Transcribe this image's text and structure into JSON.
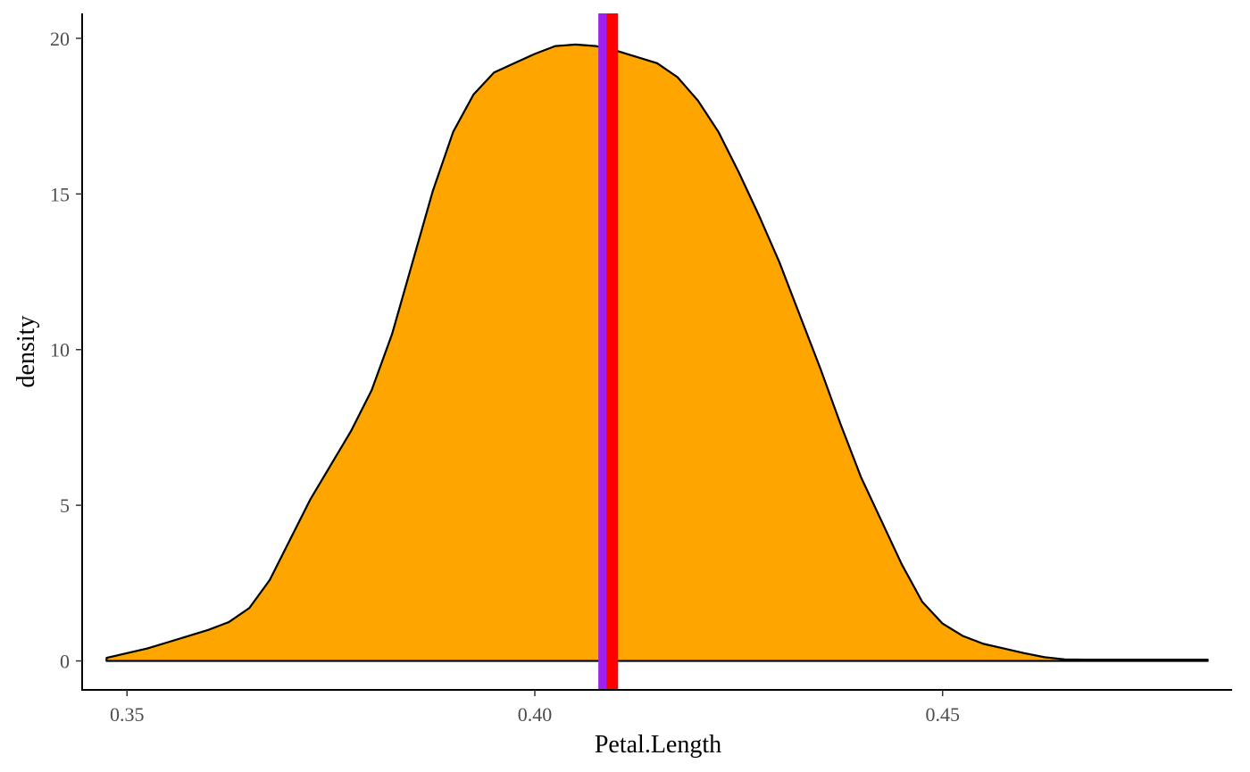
{
  "chart_data": {
    "type": "area",
    "title": "",
    "xlabel": "Petal.Length",
    "ylabel": "density",
    "xlim": [
      0.3445,
      0.4855
    ],
    "ylim": [
      -0.93,
      20.8
    ],
    "x_ticks": [
      0.35,
      0.4,
      0.45
    ],
    "x_tick_labels": [
      "0.35",
      "0.40",
      "0.45"
    ],
    "y_ticks": [
      0,
      5,
      10,
      15,
      20
    ],
    "y_tick_labels": [
      "0",
      "5",
      "10",
      "15",
      "20"
    ],
    "grid": false,
    "legend": "none",
    "colors": {
      "fill": "#FFA500",
      "outline": "#000000",
      "vline_1": "#A020F0",
      "vline_2": "#FF0000",
      "axis": "#000000"
    },
    "density": {
      "x": [
        0.3475,
        0.35,
        0.3525,
        0.355,
        0.3575,
        0.36,
        0.3625,
        0.365,
        0.3675,
        0.37,
        0.3725,
        0.375,
        0.3775,
        0.38,
        0.3825,
        0.385,
        0.3875,
        0.39,
        0.3925,
        0.395,
        0.3975,
        0.4,
        0.4025,
        0.405,
        0.4075,
        0.41,
        0.4125,
        0.415,
        0.4175,
        0.42,
        0.4225,
        0.425,
        0.4275,
        0.43,
        0.4325,
        0.435,
        0.4375,
        0.44,
        0.4425,
        0.445,
        0.4475,
        0.45,
        0.4525,
        0.455,
        0.4575,
        0.46,
        0.4625,
        0.465,
        0.4675,
        0.47,
        0.4725,
        0.475,
        0.4775,
        0.48,
        0.4825
      ],
      "y": [
        0.1,
        0.25,
        0.4,
        0.6,
        0.8,
        1.0,
        1.25,
        1.7,
        2.6,
        3.9,
        5.2,
        6.3,
        7.4,
        8.7,
        10.5,
        12.8,
        15.1,
        17.0,
        18.2,
        18.9,
        19.2,
        19.5,
        19.75,
        19.8,
        19.75,
        19.6,
        19.4,
        19.2,
        18.75,
        18.0,
        17.0,
        15.7,
        14.3,
        12.8,
        11.1,
        9.4,
        7.6,
        5.9,
        4.5,
        3.1,
        1.9,
        1.2,
        0.8,
        0.55,
        0.4,
        0.25,
        0.12,
        0.05,
        0.04,
        0.04,
        0.04,
        0.04,
        0.04,
        0.04,
        0.04
      ]
    },
    "vlines": [
      {
        "x": 0.4085,
        "color": "#A020F0"
      },
      {
        "x": 0.4095,
        "color": "#FF0000"
      }
    ]
  }
}
